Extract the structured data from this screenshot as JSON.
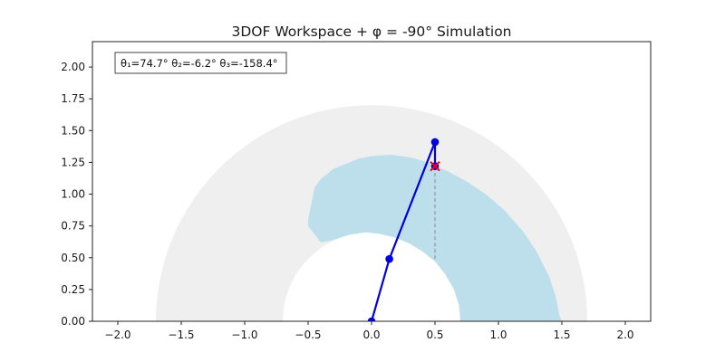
{
  "chart_data": {
    "type": "scatter",
    "title": "3DOF Workspace + φ = -90° Simulation",
    "xlabel": "",
    "ylabel": "",
    "xlim": [
      -2.2,
      2.2
    ],
    "ylim": [
      0.0,
      2.2
    ],
    "xticks": [
      -2.0,
      -1.5,
      -1.0,
      -0.5,
      0.0,
      0.5,
      1.0,
      1.5,
      2.0
    ],
    "xtick_labels": [
      "−2.0",
      "−1.5",
      "−1.0",
      "−0.5",
      "0.0",
      "0.5",
      "1.0",
      "1.5",
      "2.0"
    ],
    "yticks": [
      0.0,
      0.25,
      0.5,
      0.75,
      1.0,
      1.25,
      1.5,
      1.75,
      2.0
    ],
    "ytick_labels": [
      "0.00",
      "0.25",
      "0.50",
      "0.75",
      "1.00",
      "1.25",
      "1.50",
      "1.75",
      "2.00"
    ],
    "grid": false,
    "aspect": "equal",
    "annotation": "θ₁=74.7°  θ₂=-6.2°  θ₃=-158.4°",
    "workspace_full": {
      "description": "annular half-disc",
      "inner_radius": 0.7,
      "outer_radius": 1.7,
      "color": "#efefef"
    },
    "workspace_phi": {
      "description": "reachable region with end-effector orientation φ = -90°",
      "color": "#bddfec",
      "outline": [
        [
          0.7,
          0.0
        ],
        [
          0.69,
          0.12
        ],
        [
          0.65,
          0.25
        ],
        [
          0.58,
          0.37
        ],
        [
          0.5,
          0.47
        ],
        [
          0.4,
          0.55
        ],
        [
          0.3,
          0.61
        ],
        [
          0.18,
          0.66
        ],
        [
          0.05,
          0.69
        ],
        [
          -0.05,
          0.7
        ],
        [
          -0.18,
          0.68
        ],
        [
          -0.3,
          0.64
        ],
        [
          -0.4,
          0.62
        ],
        [
          -0.5,
          0.75
        ],
        [
          -0.5,
          0.8
        ],
        [
          -0.45,
          1.05
        ],
        [
          -0.4,
          1.12
        ],
        [
          -0.3,
          1.2
        ],
        [
          -0.2,
          1.24
        ],
        [
          -0.1,
          1.28
        ],
        [
          0.0,
          1.3
        ],
        [
          0.15,
          1.31
        ],
        [
          0.3,
          1.29
        ],
        [
          0.45,
          1.25
        ],
        [
          0.6,
          1.18
        ],
        [
          0.75,
          1.1
        ],
        [
          0.9,
          1.0
        ],
        [
          1.05,
          0.87
        ],
        [
          1.2,
          0.7
        ],
        [
          1.3,
          0.55
        ],
        [
          1.4,
          0.35
        ],
        [
          1.45,
          0.2
        ],
        [
          1.48,
          0.05
        ],
        [
          1.5,
          0.0
        ]
      ]
    },
    "arm": {
      "color": "#0000dd",
      "joints": [
        [
          0.0,
          0.0
        ],
        [
          0.14,
          0.49
        ],
        [
          0.5,
          1.41
        ],
        [
          0.5,
          1.22
        ]
      ]
    },
    "target": {
      "x": 0.5,
      "y": 1.22,
      "marker": "x",
      "color": "#ff0000"
    },
    "drop_line": {
      "x": 0.5,
      "y_from": 0.49,
      "y_to": 1.22,
      "color": "#888888"
    }
  }
}
